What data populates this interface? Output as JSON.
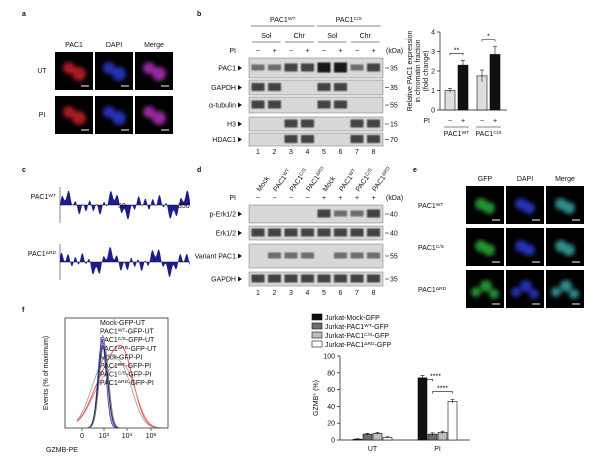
{
  "panels": {
    "a": {
      "label": "a",
      "columns": [
        "PAC1",
        "DAPI",
        "Merge"
      ],
      "rows": [
        "UT",
        "PI"
      ]
    },
    "b": {
      "label": "b",
      "groups": [
        [
          "PAC1",
          {
            "sup": "WT"
          }
        ],
        [
          "PAC1",
          {
            "sup": "C/S"
          }
        ]
      ],
      "fractions": [
        "Sol",
        "Chr",
        "Sol",
        "Chr"
      ],
      "pi_label": "PI",
      "pi": [
        "−",
        "+",
        "−",
        "+",
        "−",
        "+",
        "−",
        "+"
      ],
      "kda": "(kDa)",
      "blots": [
        {
          "name": "PAC1",
          "kda": 35
        },
        {
          "name": "GAPDH",
          "kda": 35
        },
        {
          "name": "α-tubulin",
          "kda": 55
        },
        {
          "name": "H3",
          "kda": 15
        },
        {
          "name": "HDAC1",
          "kda": 70
        }
      ],
      "lanes": [
        1,
        2,
        3,
        4,
        5,
        6,
        7,
        8
      ],
      "chart": {
        "type": "bar",
        "ylabel_lines": [
          "Relative PAC1 expression",
          "in chromatin fraction",
          "(fold change)"
        ],
        "ylim": [
          0,
          4
        ],
        "yticks": [
          0,
          1,
          2,
          3,
          4
        ],
        "values": [
          1.0,
          2.3,
          1.75,
          2.85
        ],
        "errors": [
          0.1,
          0.25,
          0.3,
          0.4
        ],
        "colors": [
          "#dedede",
          "#111111",
          "#dedede",
          "#111111"
        ],
        "pi_label": "PI",
        "pi": [
          "−",
          "+",
          "−",
          "+"
        ],
        "groups": [
          [
            "PAC1",
            {
              "sup": "WT"
            }
          ],
          [
            "PAC1",
            {
              "sup": "C/S"
            }
          ]
        ],
        "significance": [
          "**",
          "*"
        ]
      }
    },
    "c": {
      "label": "c",
      "plots": [
        {
          "name": [
            "PAC1",
            {
              "sup": "WT"
            }
          ],
          "axis_labels": [
            "50",
            "350"
          ]
        },
        {
          "name": [
            "PAC1",
            {
              "sup": "ΔRD"
            }
          ]
        }
      ]
    },
    "d": {
      "label": "d",
      "lane_labels": [
        "Mock",
        [
          "PAC1",
          {
            "sup": "WT"
          }
        ],
        [
          "PAC1",
          {
            "sup": "C/S"
          }
        ],
        [
          "PAC1",
          {
            "sup": "ΔRD"
          }
        ],
        "Mock",
        [
          "PAC1",
          {
            "sup": "WT"
          }
        ],
        [
          "PAC1",
          {
            "sup": "C/S"
          }
        ],
        [
          "PAC1",
          {
            "sup": "ΔRD"
          }
        ]
      ],
      "pi_label": "PI",
      "pi": [
        "−",
        "−",
        "−",
        "−",
        "+",
        "+",
        "+",
        "+"
      ],
      "kda": "(kDa)",
      "blots": [
        {
          "name": "p-Erk1/2",
          "kda": 40
        },
        {
          "name": "Erk1/2",
          "kda": 40
        },
        {
          "name": "Variant PAC1",
          "kda": 55
        },
        {
          "name": "GAPDH",
          "kda": 35
        }
      ],
      "lanes": [
        1,
        2,
        3,
        4,
        5,
        6,
        7,
        8
      ]
    },
    "e": {
      "label": "e",
      "columns": [
        "GFP",
        "DAPI",
        "Merge"
      ],
      "rows": [
        [
          "PAC1",
          {
            "sup": "WT"
          }
        ],
        [
          "PAC1",
          {
            "sup": "C/S"
          }
        ],
        [
          "PAC1",
          {
            "sup": "ΔRD"
          }
        ]
      ]
    },
    "f": {
      "label": "f",
      "histogram": {
        "ylabel": "Events (% of maximum)",
        "xlabel": "GZMB-PE",
        "xtick_labels": [
          "0",
          [
            "10",
            {
              "sup": "3"
            }
          ],
          [
            "10",
            {
              "sup": "4"
            }
          ],
          [
            "10",
            {
              "sup": "5"
            }
          ]
        ],
        "legend": [
          {
            "name": [
              "Mock-GFP-UT"
            ],
            "color": "#e03c3c"
          },
          {
            "name": [
              "PAC1",
              {
                "sup": "WT"
              },
              "-GFP-UT"
            ],
            "color": "#e87a7a"
          },
          {
            "name": [
              "PAC1",
              {
                "sup": "C/S"
              },
              "-GFP-UT"
            ],
            "color": "#9a9a9a"
          },
          {
            "name": [
              "PAC1",
              {
                "sup": "ΔRD"
              },
              "-GFP-UT"
            ],
            "color": "#9b6fd0"
          },
          {
            "name": [
              "Mock-GFP-PI"
            ],
            "color": "#8a8ae0"
          },
          {
            "name": [
              "PAC1",
              {
                "sup": "WT"
              },
              "-GFP-PI"
            ],
            "color": "#2a2ad0"
          },
          {
            "name": [
              "PAC1",
              {
                "sup": "C/S"
              },
              "-GFP-PI"
            ],
            "color": "#222222"
          },
          {
            "name": [
              "PAC1",
              {
                "sup": "ΔRD"
              },
              "-GFP-PI"
            ],
            "color": "#707070"
          }
        ]
      },
      "chart": {
        "type": "bar",
        "ylabel": [
          "GZMB",
          {
            "sup": "+"
          },
          " (%)"
        ],
        "ylim": [
          0,
          100
        ],
        "yticks": [
          0,
          20,
          40,
          60,
          80,
          100
        ],
        "categories": [
          "UT",
          "PI"
        ],
        "series": [
          {
            "name": [
              "Jurkat-Mock-GFP"
            ],
            "color": "#111111",
            "values": [
              1,
              74
            ],
            "errors": [
              0.5,
              3
            ]
          },
          {
            "name": [
              "Jurkat-PAC1",
              {
                "sup": "WT"
              },
              "-GFP"
            ],
            "color": "#6e6e6e",
            "values": [
              7,
              7
            ],
            "errors": [
              1,
              1.5
            ]
          },
          {
            "name": [
              "Jurkat-PAC1",
              {
                "sup": "C/S"
              },
              "-GFP"
            ],
            "color": "#bdbdbd",
            "values": [
              8,
              9
            ],
            "errors": [
              1,
              1.5
            ]
          },
          {
            "name": [
              "Jurkat-PAC1",
              {
                "sup": "ΔRD"
              },
              "-GFP"
            ],
            "color": "#ffffff",
            "values": [
              3,
              46
            ],
            "errors": [
              0.8,
              2
            ]
          }
        ],
        "significance": [
          "****",
          "****"
        ]
      }
    }
  }
}
